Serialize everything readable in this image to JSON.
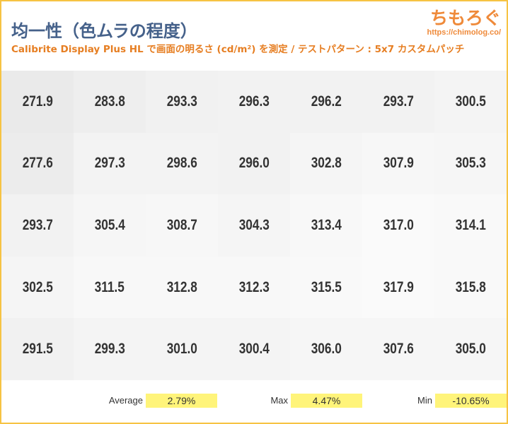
{
  "header": {
    "title": "均一性（色ムラの程度）",
    "subtitle": "Calibrite Display Plus HL で画面の明るさ (cd/m²) を測定 / テストパターン : 5x7 カスタムパッチ",
    "logo_text": "ちもろぐ",
    "logo_url": "https://chimolog.co/"
  },
  "colors": {
    "border": "#f6c343",
    "title": "#45618a",
    "subtitle": "#e67e22",
    "highlight": "#fff47a"
  },
  "grid": [
    [
      "271.9",
      "283.8",
      "293.3",
      "296.3",
      "296.2",
      "293.7",
      "300.5"
    ],
    [
      "277.6",
      "297.3",
      "298.6",
      "296.0",
      "302.8",
      "307.9",
      "305.3"
    ],
    [
      "293.7",
      "305.4",
      "308.7",
      "304.3",
      "313.4",
      "317.0",
      "314.1"
    ],
    [
      "302.5",
      "311.5",
      "312.8",
      "312.3",
      "315.5",
      "317.9",
      "315.8"
    ],
    [
      "291.5",
      "299.3",
      "301.0",
      "300.4",
      "306.0",
      "307.6",
      "305.0"
    ]
  ],
  "stats": {
    "average_label": "Average",
    "average_value": "2.79%",
    "max_label": "Max",
    "max_value": "4.47%",
    "min_label": "Min",
    "min_value": "-10.65%"
  }
}
